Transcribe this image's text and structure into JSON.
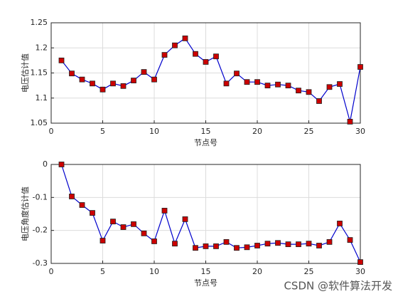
{
  "chart_data": [
    {
      "type": "line",
      "ylabel": "电压估计值",
      "xlabel": "节点号",
      "x": [
        1,
        2,
        3,
        4,
        5,
        6,
        7,
        8,
        9,
        10,
        11,
        12,
        13,
        14,
        15,
        16,
        17,
        18,
        19,
        20,
        21,
        22,
        23,
        24,
        25,
        26,
        27,
        28,
        29,
        30
      ],
      "values": [
        1.175,
        1.149,
        1.137,
        1.129,
        1.117,
        1.129,
        1.124,
        1.135,
        1.152,
        1.137,
        1.186,
        1.205,
        1.219,
        1.188,
        1.172,
        1.183,
        1.129,
        1.149,
        1.132,
        1.132,
        1.125,
        1.127,
        1.125,
        1.115,
        1.112,
        1.094,
        1.122,
        1.128,
        1.053,
        1.162
      ],
      "color": "#0000cc",
      "marker_color": "#cc0000",
      "xlim": [
        0,
        30
      ],
      "xticks": [
        0,
        5,
        10,
        15,
        20,
        25,
        30
      ],
      "ylim": [
        1.05,
        1.25
      ],
      "yticks": [
        1.05,
        1.1,
        1.15,
        1.2,
        1.25
      ],
      "grid": true
    },
    {
      "type": "line",
      "ylabel": "电压角度估计值",
      "xlabel": "节点号",
      "x": [
        1,
        2,
        3,
        4,
        5,
        6,
        7,
        8,
        9,
        10,
        11,
        12,
        13,
        14,
        15,
        16,
        17,
        18,
        19,
        20,
        21,
        22,
        23,
        24,
        25,
        26,
        27,
        28,
        29,
        30
      ],
      "values": [
        0,
        -0.097,
        -0.123,
        -0.147,
        -0.231,
        -0.173,
        -0.19,
        -0.181,
        -0.209,
        -0.233,
        -0.14,
        -0.24,
        -0.166,
        -0.253,
        -0.248,
        -0.248,
        -0.235,
        -0.253,
        -0.251,
        -0.246,
        -0.24,
        -0.238,
        -0.242,
        -0.242,
        -0.24,
        -0.246,
        -0.235,
        -0.179,
        -0.229,
        -0.296
      ],
      "color": "#0000cc",
      "marker_color": "#cc0000",
      "xlim": [
        0,
        30
      ],
      "xticks": [
        0,
        5,
        10,
        15,
        20,
        25,
        30
      ],
      "ylim": [
        -0.3,
        0
      ],
      "yticks": [
        -0.3,
        -0.2,
        -0.1,
        0
      ],
      "grid": true
    }
  ],
  "watermark": "CSDN @软件算法开发"
}
